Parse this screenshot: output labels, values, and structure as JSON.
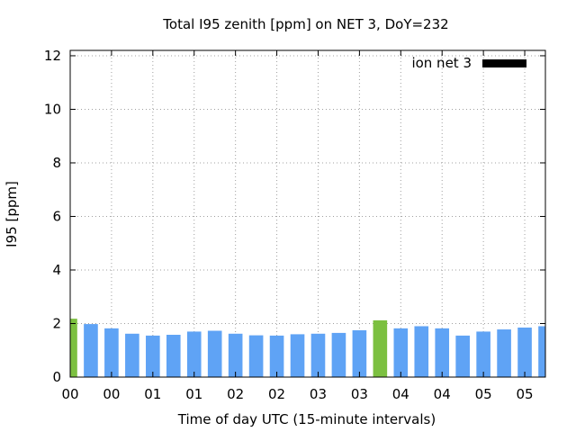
{
  "chart_data": {
    "type": "bar",
    "title": "Total I95 zenith [ppm] on NET 3, DoY=232",
    "xlabel": "Time of day UTC (15-minute intervals)",
    "ylabel": "I95 [ppm]",
    "ylim": [
      0,
      12.2
    ],
    "xlim": [
      0,
      5.75
    ],
    "yticks": [
      0,
      2,
      4,
      6,
      8,
      10,
      12
    ],
    "xticks": [
      {
        "pos": 0.0,
        "label": "00"
      },
      {
        "pos": 0.5,
        "label": "00"
      },
      {
        "pos": 1.0,
        "label": "01"
      },
      {
        "pos": 1.5,
        "label": "01"
      },
      {
        "pos": 2.0,
        "label": "02"
      },
      {
        "pos": 2.5,
        "label": "02"
      },
      {
        "pos": 3.0,
        "label": "03"
      },
      {
        "pos": 3.5,
        "label": "03"
      },
      {
        "pos": 4.0,
        "label": "04"
      },
      {
        "pos": 4.5,
        "label": "04"
      },
      {
        "pos": 5.0,
        "label": "05"
      },
      {
        "pos": 5.5,
        "label": "05"
      }
    ],
    "grid": true,
    "legend": {
      "placement": "top-right",
      "entries": [
        {
          "label": "ion net 3",
          "color": "#000000"
        }
      ]
    },
    "bar_width_hours": 0.17,
    "colors": {
      "normal": "#5fa3f5",
      "highlight": "#7cc040"
    },
    "bars": [
      {
        "x": 0.0,
        "value": 2.18,
        "highlight": true
      },
      {
        "x": 0.25,
        "value": 1.98,
        "highlight": false
      },
      {
        "x": 0.5,
        "value": 1.82,
        "highlight": false
      },
      {
        "x": 0.75,
        "value": 1.62,
        "highlight": false
      },
      {
        "x": 1.0,
        "value": 1.55,
        "highlight": false
      },
      {
        "x": 1.25,
        "value": 1.58,
        "highlight": false
      },
      {
        "x": 1.5,
        "value": 1.7,
        "highlight": false
      },
      {
        "x": 1.75,
        "value": 1.73,
        "highlight": false
      },
      {
        "x": 2.0,
        "value": 1.62,
        "highlight": false
      },
      {
        "x": 2.25,
        "value": 1.56,
        "highlight": false
      },
      {
        "x": 2.5,
        "value": 1.55,
        "highlight": false
      },
      {
        "x": 2.75,
        "value": 1.6,
        "highlight": false
      },
      {
        "x": 3.0,
        "value": 1.62,
        "highlight": false
      },
      {
        "x": 3.25,
        "value": 1.65,
        "highlight": false
      },
      {
        "x": 3.5,
        "value": 1.75,
        "highlight": false
      },
      {
        "x": 3.75,
        "value": 2.12,
        "highlight": true
      },
      {
        "x": 4.0,
        "value": 1.82,
        "highlight": false
      },
      {
        "x": 4.25,
        "value": 1.9,
        "highlight": false
      },
      {
        "x": 4.5,
        "value": 1.82,
        "highlight": false
      },
      {
        "x": 4.75,
        "value": 1.55,
        "highlight": false
      },
      {
        "x": 5.0,
        "value": 1.7,
        "highlight": false
      },
      {
        "x": 5.25,
        "value": 1.78,
        "highlight": false
      },
      {
        "x": 5.5,
        "value": 1.85,
        "highlight": false
      },
      {
        "x": 5.75,
        "value": 1.9,
        "highlight": false
      }
    ]
  }
}
